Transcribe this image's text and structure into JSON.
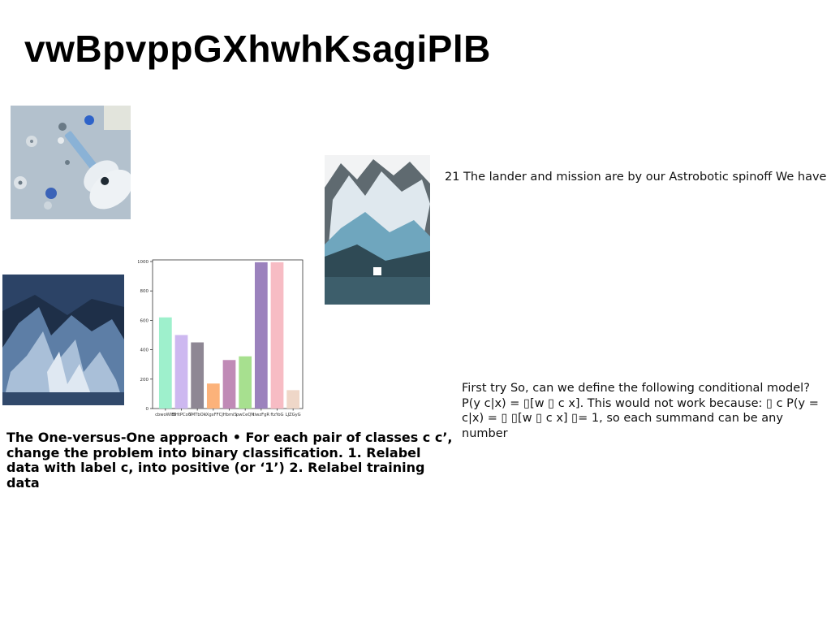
{
  "page": {
    "title": "vwBpvppGXhwhKsagiPlB",
    "paragraphs": {
      "lander": "21 The lander and mission are by our Astrobotic spinoff We have",
      "first_try": "First try So, can we define the following conditional model? P(y c|x) = ▯[w ▯ c x]. This would not work because: ▯ c P(y = c|x) = ▯ ▯[w ▯ c x] ▯= 1, so each summand can be any number",
      "one_vs_one": "The One-versus-One approach • For each pair of classes c c’, change the problem into binary classification. 1. Relabel data with label c, into positive (or ‘1’) 2. Relabel training data"
    },
    "images": {
      "guitar": "photo-ukulele-buttons",
      "mountain": "photo-snowy-mountain-lake",
      "cave": "photo-blue-ice-cave"
    }
  },
  "chart_data": {
    "type": "bar",
    "categories": [
      "cbwoWlfB",
      "ElHtPCoG",
      "YMTbOk",
      "iXgxFFC",
      "JHbmiS",
      "pwCeQN",
      "tiwzFgR",
      "ftzYoG",
      "LJZGyG"
    ],
    "values": [
      620,
      500,
      450,
      170,
      330,
      355,
      995,
      995,
      125
    ],
    "colors": [
      "#9ef0cc",
      "#cdb8f0",
      "#8e8794",
      "#fcb27a",
      "#c08ab6",
      "#a7e08f",
      "#9b82bd",
      "#f7bcc4",
      "#efd7c8"
    ],
    "yticks": [
      0,
      200,
      400,
      600,
      800,
      1000
    ],
    "ylim": [
      0,
      1000
    ],
    "title": "",
    "xlabel": "",
    "ylabel": "",
    "grid": false,
    "legend": "none"
  }
}
